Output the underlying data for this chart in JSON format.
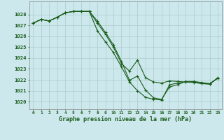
{
  "title": "Graphe pression niveau de la mer (hPa)",
  "background_color": "#cce8ec",
  "grid_color": "#aacccc",
  "line_color": "#1a5c1a",
  "marker_color": "#1a5c1a",
  "xlim": [
    -0.5,
    23.5
  ],
  "ylim": [
    1019.3,
    1029.2
  ],
  "yticks": [
    1020,
    1021,
    1022,
    1023,
    1024,
    1025,
    1026,
    1027,
    1028
  ],
  "xticks": [
    0,
    1,
    2,
    3,
    4,
    5,
    6,
    7,
    8,
    9,
    10,
    11,
    12,
    13,
    14,
    15,
    16,
    17,
    18,
    19,
    20,
    21,
    22,
    23
  ],
  "line1_x": [
    0,
    1,
    2,
    3,
    4,
    5,
    6,
    7,
    8,
    9,
    10,
    11,
    12,
    13,
    14,
    15,
    16,
    17,
    18,
    19,
    20,
    21,
    22,
    23
  ],
  "line1": [
    1027.2,
    1027.55,
    1027.4,
    1027.75,
    1028.15,
    1028.28,
    1028.28,
    1028.28,
    1027.4,
    1026.35,
    1025.2,
    1023.7,
    1021.95,
    1022.35,
    1021.05,
    1020.35,
    1020.2,
    1021.35,
    1021.55,
    1021.85,
    1021.85,
    1021.75,
    1021.65,
    1022.15
  ],
  "line2_x": [
    0,
    1,
    2,
    3,
    4,
    5,
    6,
    7,
    8,
    9,
    10,
    11,
    12,
    13,
    14,
    15,
    16,
    17,
    18,
    19,
    20,
    21,
    22,
    23
  ],
  "line2": [
    1027.2,
    1027.55,
    1027.4,
    1027.75,
    1028.15,
    1028.28,
    1028.28,
    1028.28,
    1027.2,
    1026.2,
    1025.0,
    1023.5,
    1022.8,
    1023.8,
    1022.2,
    1021.8,
    1021.7,
    1021.9,
    1021.85,
    1021.8,
    1021.75,
    1021.65,
    1021.6,
    1022.2
  ],
  "line3_x": [
    0,
    1,
    2,
    3,
    4,
    5,
    6,
    7,
    8,
    9,
    10,
    11,
    12,
    13,
    14,
    15,
    16,
    17,
    18,
    19,
    20,
    21,
    22,
    23
  ],
  "line3": [
    1027.2,
    1027.55,
    1027.4,
    1027.75,
    1028.15,
    1028.28,
    1028.28,
    1028.28,
    1026.5,
    1025.5,
    1024.5,
    1023.2,
    1021.8,
    1021.0,
    1020.4,
    1020.2,
    1020.15,
    1021.55,
    1021.7,
    1021.8,
    1021.8,
    1021.7,
    1021.6,
    1022.15
  ]
}
